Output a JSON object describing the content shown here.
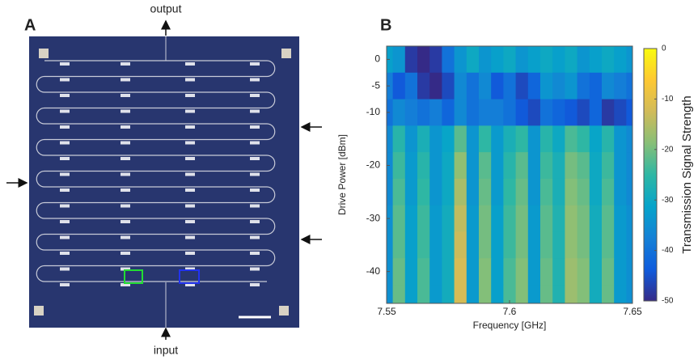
{
  "panel_a": {
    "label": "A",
    "top_label": "output",
    "bottom_label": "input"
  },
  "chart_data": {
    "type": "heatmap",
    "panel_label": "B",
    "x_label": "Frequency [GHz]",
    "y_label": "Drive Power [dBm]",
    "colorbar_label": "Transmission Signal Strength",
    "x": [
      7.55,
      7.555,
      7.56,
      7.565,
      7.57,
      7.575,
      7.58,
      7.585,
      7.59,
      7.595,
      7.6,
      7.605,
      7.61,
      7.615,
      7.62,
      7.625,
      7.63,
      7.635,
      7.64,
      7.645,
      7.65
    ],
    "y": [
      0,
      -5,
      -10,
      -15,
      -20,
      -25,
      -30,
      -35,
      -40,
      -45
    ],
    "z": [
      [
        -32,
        -34,
        -48,
        -50,
        -48,
        -40,
        -34,
        -30,
        -34,
        -32,
        -30,
        -34,
        -32,
        -30,
        -32,
        -30,
        -34,
        -32,
        -30,
        -32,
        -34
      ],
      [
        -38,
        -44,
        -40,
        -48,
        -50,
        -46,
        -36,
        -40,
        -36,
        -44,
        -40,
        -46,
        -42,
        -34,
        -36,
        -34,
        -40,
        -42,
        -36,
        -38,
        -40
      ],
      [
        -40,
        -36,
        -38,
        -40,
        -38,
        -42,
        -36,
        -40,
        -38,
        -38,
        -40,
        -44,
        -46,
        -40,
        -42,
        -44,
        -46,
        -42,
        -48,
        -46,
        -44
      ],
      [
        -36,
        -26,
        -34,
        -28,
        -34,
        -31,
        -22,
        -34,
        -25,
        -33,
        -28,
        -25,
        -34,
        -26,
        -30,
        -23,
        -25,
        -31,
        -26,
        -34,
        -36
      ],
      [
        -36,
        -24,
        -33,
        -26,
        -34,
        -30,
        -18,
        -34,
        -22,
        -33,
        -26,
        -22,
        -34,
        -24,
        -28,
        -20,
        -22,
        -30,
        -24,
        -34,
        -36
      ],
      [
        -36,
        -23,
        -33,
        -25,
        -34,
        -30,
        -16,
        -34,
        -21,
        -33,
        -25,
        -21,
        -34,
        -23,
        -28,
        -19,
        -21,
        -30,
        -23,
        -34,
        -36
      ],
      [
        -35,
        -22,
        -32,
        -24,
        -33,
        -29,
        -14,
        -33,
        -20,
        -32,
        -24,
        -20,
        -33,
        -22,
        -27,
        -18,
        -20,
        -29,
        -22,
        -33,
        -35
      ],
      [
        -35,
        -22,
        -32,
        -24,
        -33,
        -29,
        -13,
        -33,
        -20,
        -32,
        -24,
        -20,
        -33,
        -22,
        -27,
        -18,
        -20,
        -29,
        -22,
        -33,
        -35
      ],
      [
        -35,
        -21,
        -32,
        -23,
        -33,
        -29,
        -12,
        -33,
        -19,
        -32,
        -23,
        -19,
        -33,
        -21,
        -27,
        -17,
        -19,
        -29,
        -21,
        -33,
        -35
      ],
      [
        -35,
        -21,
        -32,
        -23,
        -33,
        -29,
        -12,
        -33,
        -19,
        -32,
        -23,
        -19,
        -33,
        -21,
        -27,
        -17,
        -19,
        -29,
        -21,
        -33,
        -35
      ]
    ],
    "xlim": [
      7.55,
      7.65
    ],
    "ylim": [
      -46,
      2.5
    ],
    "xticks": [
      7.55,
      7.6,
      7.65
    ],
    "yticks": [
      -40,
      -30,
      -20,
      -10,
      -5,
      0
    ],
    "zlim": [
      -50,
      0
    ],
    "zticks": [
      -50,
      -40,
      -30,
      -20,
      -10,
      0
    ],
    "colormap": [
      "#352a87",
      "#0f5cdd",
      "#1481d6",
      "#06a4ca",
      "#2eb7a4",
      "#87bf77",
      "#d1bb59",
      "#fec832",
      "#f9fb0e"
    ]
  }
}
